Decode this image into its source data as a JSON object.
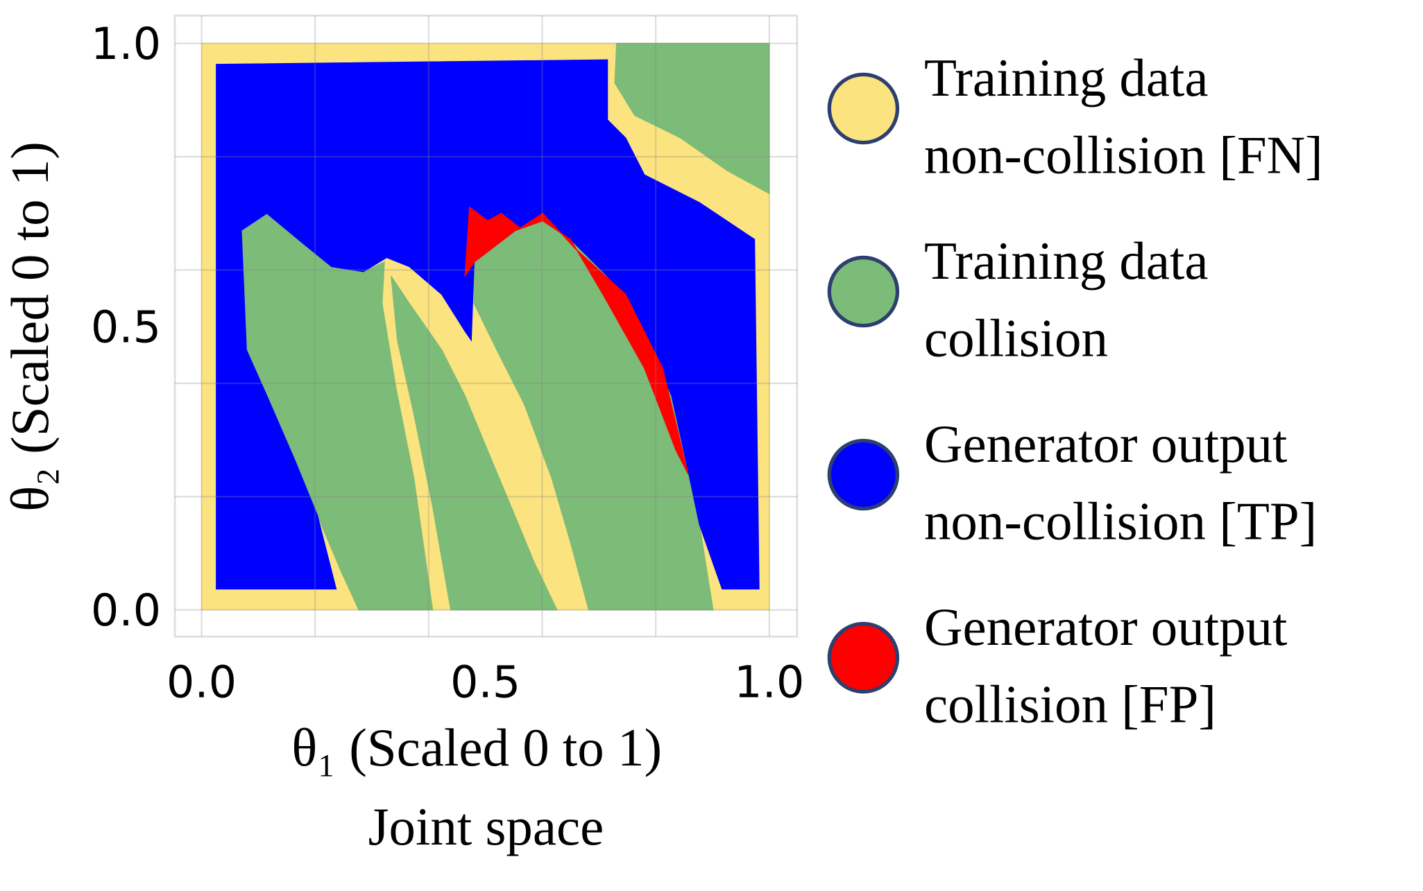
{
  "chart_data": {
    "type": "region",
    "xlabel": [
      "θ₁ (Scaled 0 to 1)",
      "Joint space"
    ],
    "ylabel": "θ₂ (Scaled 0 to 1)",
    "xlim": [
      -0.047,
      1.049
    ],
    "ylim": [
      -0.047,
      1.049
    ],
    "xticks": [
      {
        "value": 0,
        "label": "0.0"
      },
      {
        "value": 0.5,
        "label": "0.5"
      },
      {
        "value": 1,
        "label": "1.0"
      }
    ],
    "yticks": [
      {
        "value": 0,
        "label": "0.0"
      },
      {
        "value": 0.5,
        "label": "0.5"
      },
      {
        "value": 1,
        "label": "1.0"
      }
    ],
    "grid": [
      0,
      0.2,
      0.4,
      0.6,
      0.8,
      1
    ],
    "series": [
      {
        "name": [
          "Training data",
          "non-collision [FN]"
        ],
        "color": "#fbe37f",
        "regions": [
          {
            "x": [
              0,
              1,
              1,
              0
            ],
            "y": [
              0,
              0,
              1,
              1
            ]
          }
        ]
      },
      {
        "name": [
          "Training data",
          "collision"
        ],
        "color": "#7cbb78",
        "regions": [
          {
            "x": [
              0.731,
              1,
              1,
              0.925,
              0.844,
              0.763,
              0.728
            ],
            "y": [
              1,
              1,
              0.735,
              0.776,
              0.833,
              0.873,
              0.93
            ]
          },
          {
            "x": [
              0.07,
              0.115,
              0.18,
              0.229,
              0.285,
              0.322,
              0.318,
              0.342,
              0.374,
              0.407,
              0.277,
              0.245,
              0.204,
              0.164,
              0.115,
              0.079
            ],
            "y": [
              0.67,
              0.7,
              0.646,
              0.606,
              0.597,
              0.614,
              0.541,
              0.394,
              0.232,
              0,
              0,
              0.07,
              0.167,
              0.265,
              0.378,
              0.459
            ]
          },
          {
            "x": [
              0.334,
              0.366,
              0.423,
              0.464,
              0.504,
              0.545,
              0.585,
              0.626,
              0.439,
              0.407,
              0.374,
              0.345
            ],
            "y": [
              0.589,
              0.541,
              0.459,
              0.378,
              0.281,
              0.183,
              0.086,
              0,
              0,
              0.183,
              0.346,
              0.476
            ]
          },
          {
            "x": [
              0.48,
              0.553,
              0.601,
              0.65,
              0.715,
              0.78,
              0.828,
              0.853,
              0.877,
              0.901,
              0.682,
              0.65,
              0.617,
              0.569,
              0.52,
              0.48
            ],
            "y": [
              0.614,
              0.67,
              0.687,
              0.654,
              0.589,
              0.492,
              0.378,
              0.265,
              0.151,
              0,
              0,
              0.119,
              0.232,
              0.362,
              0.459,
              0.541
            ]
          }
        ]
      },
      {
        "name": [
          "Generator output",
          "non-collision [TP]"
        ],
        "color": "#0000fe",
        "regions": [
          {
            "x": [
              0.026,
              0.715,
              0.715,
              0.747,
              0.78,
              0.877,
              0.974,
              0.982,
              0.917,
              0.877,
              0.853,
              0.828,
              0.78,
              0.715,
              0.65,
              0.601,
              0.553,
              0.48,
              0.475,
              0.464,
              0.423,
              0.366,
              0.326,
              0.285,
              0.229,
              0.18,
              0.115,
              0.07,
              0.079,
              0.115,
              0.164,
              0.204,
              0.237,
              0.026
            ],
            "y": [
              0.963,
              0.971,
              0.865,
              0.833,
              0.768,
              0.719,
              0.654,
              0.037,
              0.037,
              0.151,
              0.265,
              0.378,
              0.492,
              0.589,
              0.654,
              0.687,
              0.67,
              0.614,
              0.476,
              0.492,
              0.557,
              0.606,
              0.622,
              0.597,
              0.606,
              0.646,
              0.7,
              0.67,
              0.459,
              0.378,
              0.265,
              0.167,
              0.037,
              0.037
            ]
          }
        ]
      },
      {
        "name": [
          "Generator output",
          "collision [FP]"
        ],
        "color": "#fe0000",
        "regions": [
          {
            "x": [
              0.464,
              0.472,
              0.504,
              0.528,
              0.561,
              0.601,
              0.658,
              0.747,
              0.812,
              0.857,
              0.836,
              0.78,
              0.707,
              0.65,
              0.601,
              0.553,
              0.48
            ],
            "y": [
              0.589,
              0.711,
              0.687,
              0.7,
              0.674,
              0.7,
              0.638,
              0.557,
              0.427,
              0.24,
              0.281,
              0.427,
              0.557,
              0.654,
              0.687,
              0.67,
              0.614
            ]
          }
        ]
      }
    ]
  }
}
